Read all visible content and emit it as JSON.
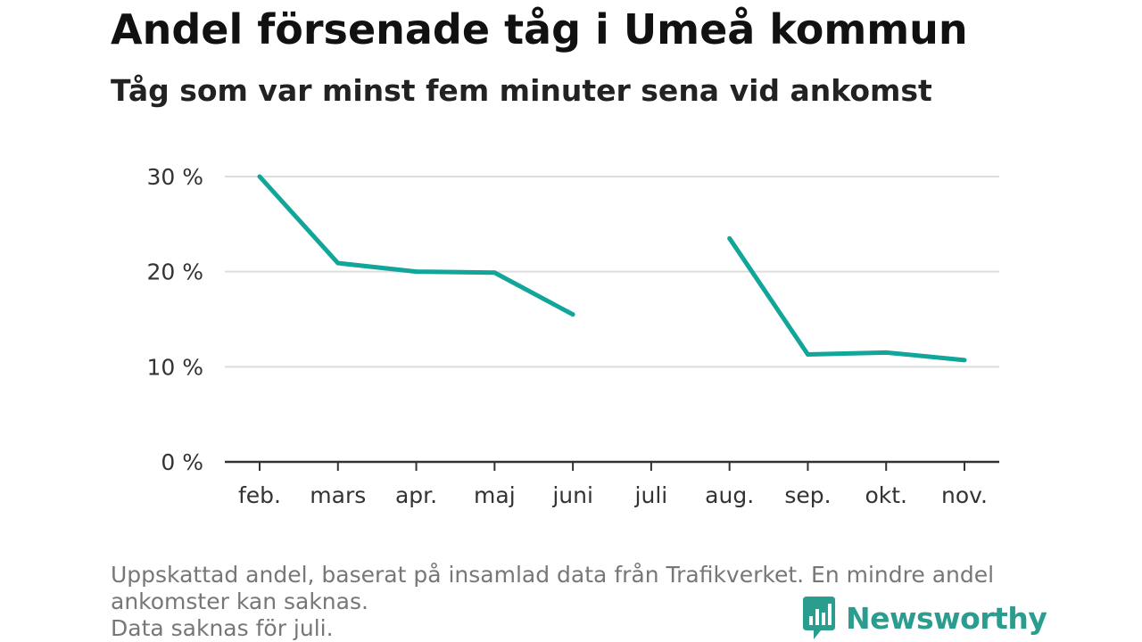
{
  "title": "Andel försenade tåg i Umeå kommun",
  "subtitle": "Tåg som var minst fem minuter sena vid ankomst",
  "chart_data": {
    "type": "line",
    "categories": [
      "feb.",
      "mars",
      "apr.",
      "maj",
      "juni",
      "juli",
      "aug.",
      "sep.",
      "okt.",
      "nov."
    ],
    "series": [
      {
        "values": [
          30.0,
          20.9,
          20.0,
          19.9,
          15.5,
          null,
          23.5,
          11.3,
          11.5,
          10.7
        ]
      }
    ],
    "y_ticks": [
      {
        "value": 0,
        "label": "0 %"
      },
      {
        "value": 10,
        "label": "10 %"
      },
      {
        "value": 20,
        "label": "20 %"
      },
      {
        "value": 30,
        "label": "30 %"
      }
    ],
    "ylim": [
      0,
      30
    ],
    "grid": true,
    "line_color": "#12a599"
  },
  "footnote": {
    "line1": "Uppskattad andel, baserat på insamlad data från Trafikverket. En mindre andel",
    "line2": "ankomster kan saknas.",
    "line3": "Data saknas för juli."
  },
  "brand": {
    "name": "Newsworthy",
    "icon": "newsworthy-logo-icon",
    "color": "#2a9d8f"
  }
}
